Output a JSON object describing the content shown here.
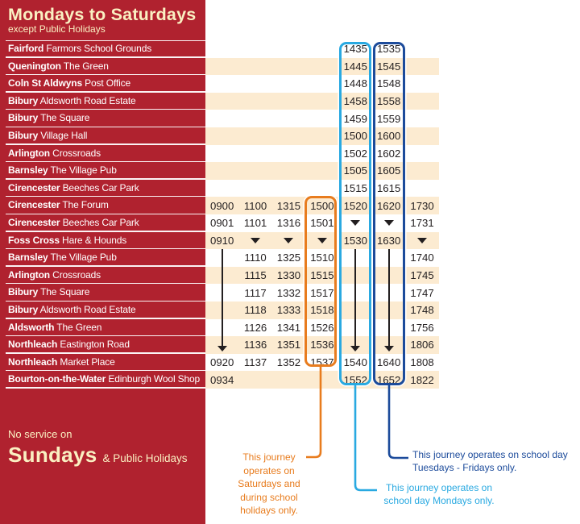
{
  "header": {
    "title": "Mondays to Saturdays",
    "subtitle": "except Public Holidays"
  },
  "no_service": {
    "prefix": "No service on",
    "day": "Sundays",
    "suffix": "& Public Holidays"
  },
  "legend": {
    "orange_note_lines": [
      "This journey",
      "operates on",
      "Saturdays and",
      "during school",
      "holidays only."
    ],
    "navy_note_lines": [
      "This journey operates on school day",
      "Tuesdays - Fridays only."
    ],
    "cyan_note_lines": [
      "This journey operates on",
      "school day Mondays only."
    ]
  },
  "markers": {
    "v": "skip-stop-marker (solid down triangle)",
    "|": "runs-through-line (vertical line, bus does not stop)",
    "V": "runs-through-arrow-end (vertical line ending in arrowhead)"
  },
  "colors": {
    "sidebar_red": "#b0222f",
    "cream_text": "#faf0c2",
    "stripe_peach": "#fcebd1",
    "time_text": "#231f20",
    "orange_highlight": "#e87c1e",
    "cyan_highlight": "#29a9e1",
    "navy_highlight": "#1c4b9b"
  },
  "table": {
    "rows": [
      {
        "place": "Fairford",
        "stop": "Farmors School Grounds",
        "striped": false,
        "cells": [
          "",
          "",
          "",
          "",
          "1435",
          "1535",
          ""
        ]
      },
      {
        "place": "Quenington",
        "stop": "The Green",
        "striped": true,
        "cells": [
          "",
          "",
          "",
          "",
          "1445",
          "1545",
          ""
        ]
      },
      {
        "place": "Coln St Aldwyns",
        "stop": "Post Office",
        "striped": false,
        "cells": [
          "",
          "",
          "",
          "",
          "1448",
          "1548",
          ""
        ]
      },
      {
        "place": "Bibury",
        "stop": "Aldsworth Road Estate",
        "striped": true,
        "cells": [
          "",
          "",
          "",
          "",
          "1458",
          "1558",
          ""
        ]
      },
      {
        "place": "Bibury",
        "stop": "The Square",
        "striped": false,
        "cells": [
          "",
          "",
          "",
          "",
          "1459",
          "1559",
          ""
        ]
      },
      {
        "place": "Bibury",
        "stop": "Village Hall",
        "striped": true,
        "cells": [
          "",
          "",
          "",
          "",
          "1500",
          "1600",
          ""
        ]
      },
      {
        "place": "Arlington",
        "stop": "Crossroads",
        "striped": false,
        "cells": [
          "",
          "",
          "",
          "",
          "1502",
          "1602",
          ""
        ]
      },
      {
        "place": "Barnsley",
        "stop": "The Village Pub",
        "striped": true,
        "cells": [
          "",
          "",
          "",
          "",
          "1505",
          "1605",
          ""
        ]
      },
      {
        "place": "Cirencester",
        "stop": "Beeches Car Park",
        "striped": false,
        "cells": [
          "",
          "",
          "",
          "",
          "1515",
          "1615",
          ""
        ]
      },
      {
        "place": "Cirencester",
        "stop": "The Forum",
        "striped": true,
        "cells": [
          "0900",
          "1100",
          "1315",
          "1500",
          "1520",
          "1620",
          "1730"
        ]
      },
      {
        "place": "Cirencester",
        "stop": "Beeches Car Park",
        "striped": false,
        "cells": [
          "0901",
          "1101",
          "1316",
          "1501",
          "v",
          "v",
          "1731"
        ]
      },
      {
        "place": "Foss Cross",
        "stop": "Hare & Hounds",
        "striped": true,
        "cells": [
          "0910",
          "v",
          "v",
          "v",
          "1530",
          "1630",
          "v"
        ]
      },
      {
        "place": "Barnsley",
        "stop": "The Village Pub",
        "striped": false,
        "cells": [
          "|",
          "1110",
          "1325",
          "1510",
          "|",
          "|",
          "1740"
        ]
      },
      {
        "place": "Arlington",
        "stop": "Crossroads",
        "striped": true,
        "cells": [
          "|",
          "1115",
          "1330",
          "1515",
          "|",
          "|",
          "1745"
        ]
      },
      {
        "place": "Bibury",
        "stop": "The Square",
        "striped": false,
        "cells": [
          "|",
          "1117",
          "1332",
          "1517",
          "|",
          "|",
          "1747"
        ]
      },
      {
        "place": "Bibury",
        "stop": "Aldsworth Road Estate",
        "striped": true,
        "cells": [
          "|",
          "1118",
          "1333",
          "1518",
          "|",
          "|",
          "1748"
        ]
      },
      {
        "place": "Aldsworth",
        "stop": "The Green",
        "striped": false,
        "cells": [
          "|",
          "1126",
          "1341",
          "1526",
          "|",
          "|",
          "1756"
        ]
      },
      {
        "place": "Northleach",
        "stop": "Eastington Road",
        "striped": true,
        "cells": [
          "V",
          "1136",
          "1351",
          "1536",
          "V",
          "V",
          "1806"
        ]
      },
      {
        "place": "Northleach",
        "stop": "Market Place",
        "striped": false,
        "cells": [
          "0920",
          "1137",
          "1352",
          "1537",
          "1540",
          "1640",
          "1808"
        ]
      },
      {
        "place": "Bourton-on-the-Water",
        "stop": "Edinburgh Wool Shop",
        "striped": true,
        "cells": [
          "0934",
          "",
          "",
          "",
          "1552",
          "1652",
          "1822"
        ]
      }
    ]
  }
}
